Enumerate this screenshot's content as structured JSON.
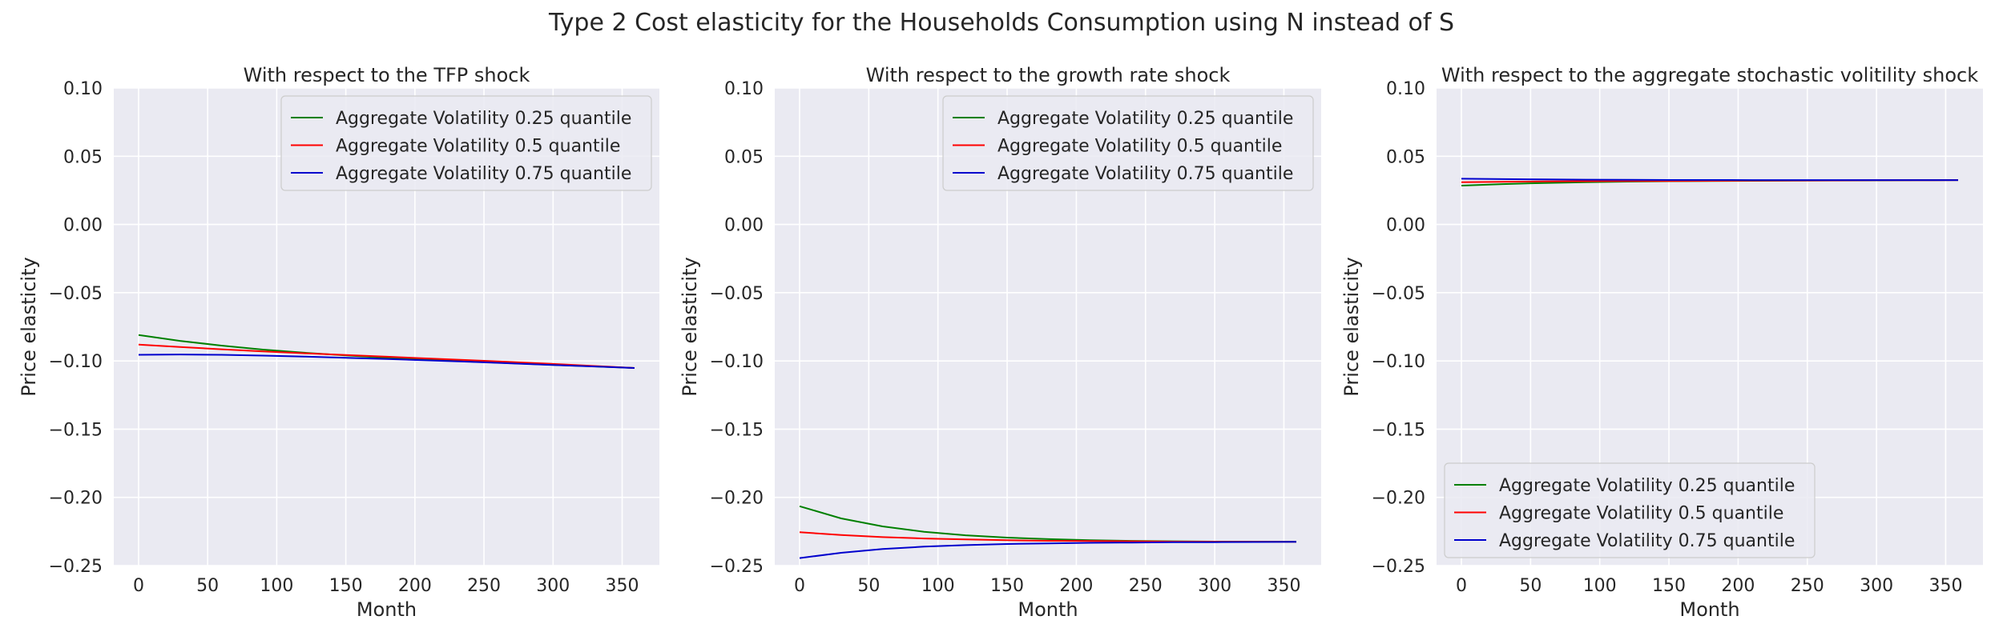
{
  "figure_title": "Type 2 Cost elasticity for the Households Consumption using N instead of S",
  "colors": {
    "plot_background": "#eaeaf2",
    "grid": "#ffffff",
    "legend_background": "#eaeaf2",
    "legend_border": "#cccccc",
    "text": "#262626"
  },
  "chart_data": [
    {
      "type": "line",
      "title": "With respect to the TFP shock",
      "xlabel": "Month",
      "ylabel": "Price elasticity",
      "xlim": [
        -17.95,
        376.95
      ],
      "ylim": [
        -0.25,
        0.1
      ],
      "xticks": [
        0,
        50,
        100,
        150,
        200,
        250,
        300,
        350
      ],
      "yticks": [
        -0.25,
        -0.2,
        -0.15,
        -0.1,
        -0.05,
        0.0,
        0.05,
        0.1
      ],
      "ytick_labels": [
        "−0.25",
        "−0.20",
        "−0.15",
        "−0.10",
        "−0.05",
        "0.00",
        "0.05",
        "0.10"
      ],
      "grid": true,
      "legend_position": "upper right",
      "series": [
        {
          "name": "Aggregate Volatility 0.25 quantile",
          "color": "#008000",
          "x": [
            0,
            30,
            60,
            90,
            120,
            150,
            180,
            210,
            240,
            270,
            300,
            330,
            359
          ],
          "y": [
            -0.081,
            -0.0853,
            -0.0888,
            -0.0917,
            -0.094,
            -0.096,
            -0.0977,
            -0.0992,
            -0.1005,
            -0.1017,
            -0.1029,
            -0.104,
            -0.1052
          ]
        },
        {
          "name": "Aggregate Volatility 0.5 quantile",
          "color": "#ff0000",
          "x": [
            0,
            30,
            60,
            90,
            120,
            150,
            180,
            210,
            240,
            270,
            300,
            330,
            359
          ],
          "y": [
            -0.088,
            -0.0898,
            -0.0915,
            -0.093,
            -0.0944,
            -0.0957,
            -0.0969,
            -0.0982,
            -0.0995,
            -0.1008,
            -0.1022,
            -0.1037,
            -0.1052
          ]
        },
        {
          "name": "Aggregate Volatility 0.75 quantile",
          "color": "#0000cd",
          "x": [
            0,
            30,
            60,
            90,
            120,
            150,
            180,
            210,
            240,
            270,
            300,
            330,
            359
          ],
          "y": [
            -0.0955,
            -0.0953,
            -0.0955,
            -0.0961,
            -0.0968,
            -0.0977,
            -0.0986,
            -0.0996,
            -0.1007,
            -0.1018,
            -0.103,
            -0.1041,
            -0.1052
          ]
        }
      ]
    },
    {
      "type": "line",
      "title": "With respect to the growth rate shock",
      "xlabel": "Month",
      "ylabel": "Price elasticity",
      "xlim": [
        -17.95,
        376.95
      ],
      "ylim": [
        -0.25,
        0.1
      ],
      "xticks": [
        0,
        50,
        100,
        150,
        200,
        250,
        300,
        350
      ],
      "yticks": [
        -0.25,
        -0.2,
        -0.15,
        -0.1,
        -0.05,
        0.0,
        0.05,
        0.1
      ],
      "ytick_labels": [
        "−0.25",
        "−0.20",
        "−0.15",
        "−0.10",
        "−0.05",
        "0.00",
        "0.05",
        "0.10"
      ],
      "grid": true,
      "legend_position": "upper right",
      "series": [
        {
          "name": "Aggregate Volatility 0.25 quantile",
          "color": "#008000",
          "x": [
            0,
            30,
            60,
            90,
            120,
            150,
            180,
            210,
            240,
            270,
            300,
            330,
            359
          ],
          "y": [
            -0.2065,
            -0.2154,
            -0.2213,
            -0.2252,
            -0.2278,
            -0.2295,
            -0.2306,
            -0.2314,
            -0.2319,
            -0.2322,
            -0.2324,
            -0.2325,
            -0.2326
          ]
        },
        {
          "name": "Aggregate Volatility 0.5 quantile",
          "color": "#ff0000",
          "x": [
            0,
            30,
            60,
            90,
            120,
            150,
            180,
            210,
            240,
            270,
            300,
            330,
            359
          ],
          "y": [
            -0.2255,
            -0.2276,
            -0.2291,
            -0.2301,
            -0.2308,
            -0.2314,
            -0.2318,
            -0.232,
            -0.2322,
            -0.2324,
            -0.2325,
            -0.2325,
            -0.2326
          ]
        },
        {
          "name": "Aggregate Volatility 0.75 quantile",
          "color": "#0000cd",
          "x": [
            0,
            30,
            60,
            90,
            120,
            150,
            180,
            210,
            240,
            270,
            300,
            330,
            359
          ],
          "y": [
            -0.2445,
            -0.2406,
            -0.2378,
            -0.2361,
            -0.235,
            -0.2342,
            -0.2337,
            -0.2333,
            -0.2331,
            -0.2329,
            -0.2328,
            -0.2327,
            -0.2326
          ]
        }
      ]
    },
    {
      "type": "line",
      "title": "With respect to the aggregate stochastic volitility shock",
      "xlabel": "Month",
      "ylabel": "Price elasticity",
      "xlim": [
        -17.95,
        376.95
      ],
      "ylim": [
        -0.25,
        0.1
      ],
      "xticks": [
        0,
        50,
        100,
        150,
        200,
        250,
        300,
        350
      ],
      "yticks": [
        -0.25,
        -0.2,
        -0.15,
        -0.1,
        -0.05,
        0.0,
        0.05,
        0.1
      ],
      "ytick_labels": [
        "−0.25",
        "−0.20",
        "−0.15",
        "−0.10",
        "−0.05",
        "0.00",
        "0.05",
        "0.10"
      ],
      "grid": true,
      "legend_position": "lower left",
      "series": [
        {
          "name": "Aggregate Volatility 0.25 quantile",
          "color": "#008000",
          "x": [
            0,
            30,
            60,
            90,
            120,
            150,
            180,
            210,
            240,
            270,
            300,
            330,
            359
          ],
          "y": [
            0.0285,
            0.0296,
            0.0304,
            0.031,
            0.0314,
            0.0317,
            0.0319,
            0.032,
            0.0321,
            0.0322,
            0.0323,
            0.0324,
            0.0325
          ]
        },
        {
          "name": "Aggregate Volatility 0.5 quantile",
          "color": "#ff0000",
          "x": [
            0,
            30,
            60,
            90,
            120,
            150,
            180,
            210,
            240,
            270,
            300,
            330,
            359
          ],
          "y": [
            0.031,
            0.0313,
            0.0315,
            0.0317,
            0.0318,
            0.0319,
            0.032,
            0.0321,
            0.0322,
            0.0323,
            0.0324,
            0.0324,
            0.0325
          ]
        },
        {
          "name": "Aggregate Volatility 0.75 quantile",
          "color": "#0000cd",
          "x": [
            0,
            30,
            60,
            90,
            120,
            150,
            180,
            210,
            240,
            270,
            300,
            330,
            359
          ],
          "y": [
            0.0335,
            0.0332,
            0.033,
            0.0328,
            0.0327,
            0.0326,
            0.0326,
            0.0325,
            0.0325,
            0.0325,
            0.0325,
            0.0325,
            0.0325
          ]
        }
      ]
    }
  ]
}
